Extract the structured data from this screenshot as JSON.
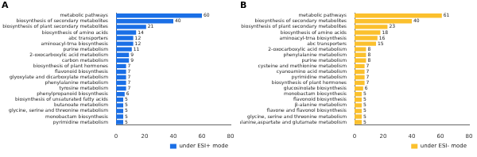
{
  "chart_data": [
    {
      "type": "bar",
      "title": "A",
      "orientation": "horizontal",
      "grid": false,
      "data_labels": true,
      "legend": "lower right",
      "categories": [
        "metabolic pathways",
        "biosynthesis of secondary metabolites",
        "biosynthesis of plant secondary metabolites",
        "biosynthesis of amino acids",
        "abc transporters",
        "aminoacyl-trna biosynthesis",
        "purine metabolism",
        "2-oxocarboxylic acid metabolism",
        "carbon metabolism",
        "biosynthesis of plant hormones",
        "flavonoid biosynthesis",
        "glyoxylate and dicarboxylate metabolism",
        "phenylalanine metabolism",
        "tyrosine metabolism",
        "phenylpropanoid biosynthesis",
        "biosynthesis of unsaturated fatty acids",
        "butanoate metabolism",
        "glycine, serine and threonine metabolism",
        "monobactam biosynthesis",
        "pyrimidine metabolism"
      ],
      "series": [
        {
          "name": "under ESI+ mode",
          "color": "#1a6fe6",
          "values": [
            60,
            40,
            21,
            14,
            12,
            12,
            11,
            9,
            9,
            7,
            7,
            7,
            7,
            7,
            6,
            5,
            5,
            5,
            5,
            5
          ]
        }
      ],
      "xlim": [
        0,
        80
      ],
      "xticks": [
        0,
        20,
        40,
        60,
        80
      ]
    },
    {
      "type": "bar",
      "title": "B",
      "orientation": "horizontal",
      "grid": false,
      "data_labels": true,
      "legend": "lower right",
      "categories": [
        "metabolic pathways",
        "biosynthesis of secondary metabolites",
        "biosynthesis of plant secondary metabolites",
        "biosynthesis of amino acids",
        "aminoacyl-trna biosynthesis",
        "abc transporters",
        "2-oxocarboxylic acid metabolism",
        "phenylalanine metabolism",
        "purine metabolism",
        "cysteine and methionine metabolism",
        "cyanoamino acid metabolism",
        "pyrimidine metabolism",
        "biosynthesis of plant hormones",
        "glucosinolate biosynthesis",
        "monobactam biosynthesis",
        "flavonoid biosynthesis",
        "β-alanine metabolism",
        "flavone and flavonol biosynthesis",
        "glycine, serine and threonine metabolism",
        "alanine,aspartate and glutamate metabolism"
      ],
      "series": [
        {
          "name": "under ESI- mode",
          "color": "#fbc02d",
          "values": [
            61,
            40,
            23,
            18,
            16,
            15,
            8,
            8,
            8,
            7,
            7,
            7,
            7,
            6,
            5,
            5,
            5,
            5,
            5,
            5
          ]
        }
      ],
      "xlim": [
        0,
        80
      ],
      "xticks": [
        0,
        20,
        40,
        60,
        80
      ]
    }
  ]
}
